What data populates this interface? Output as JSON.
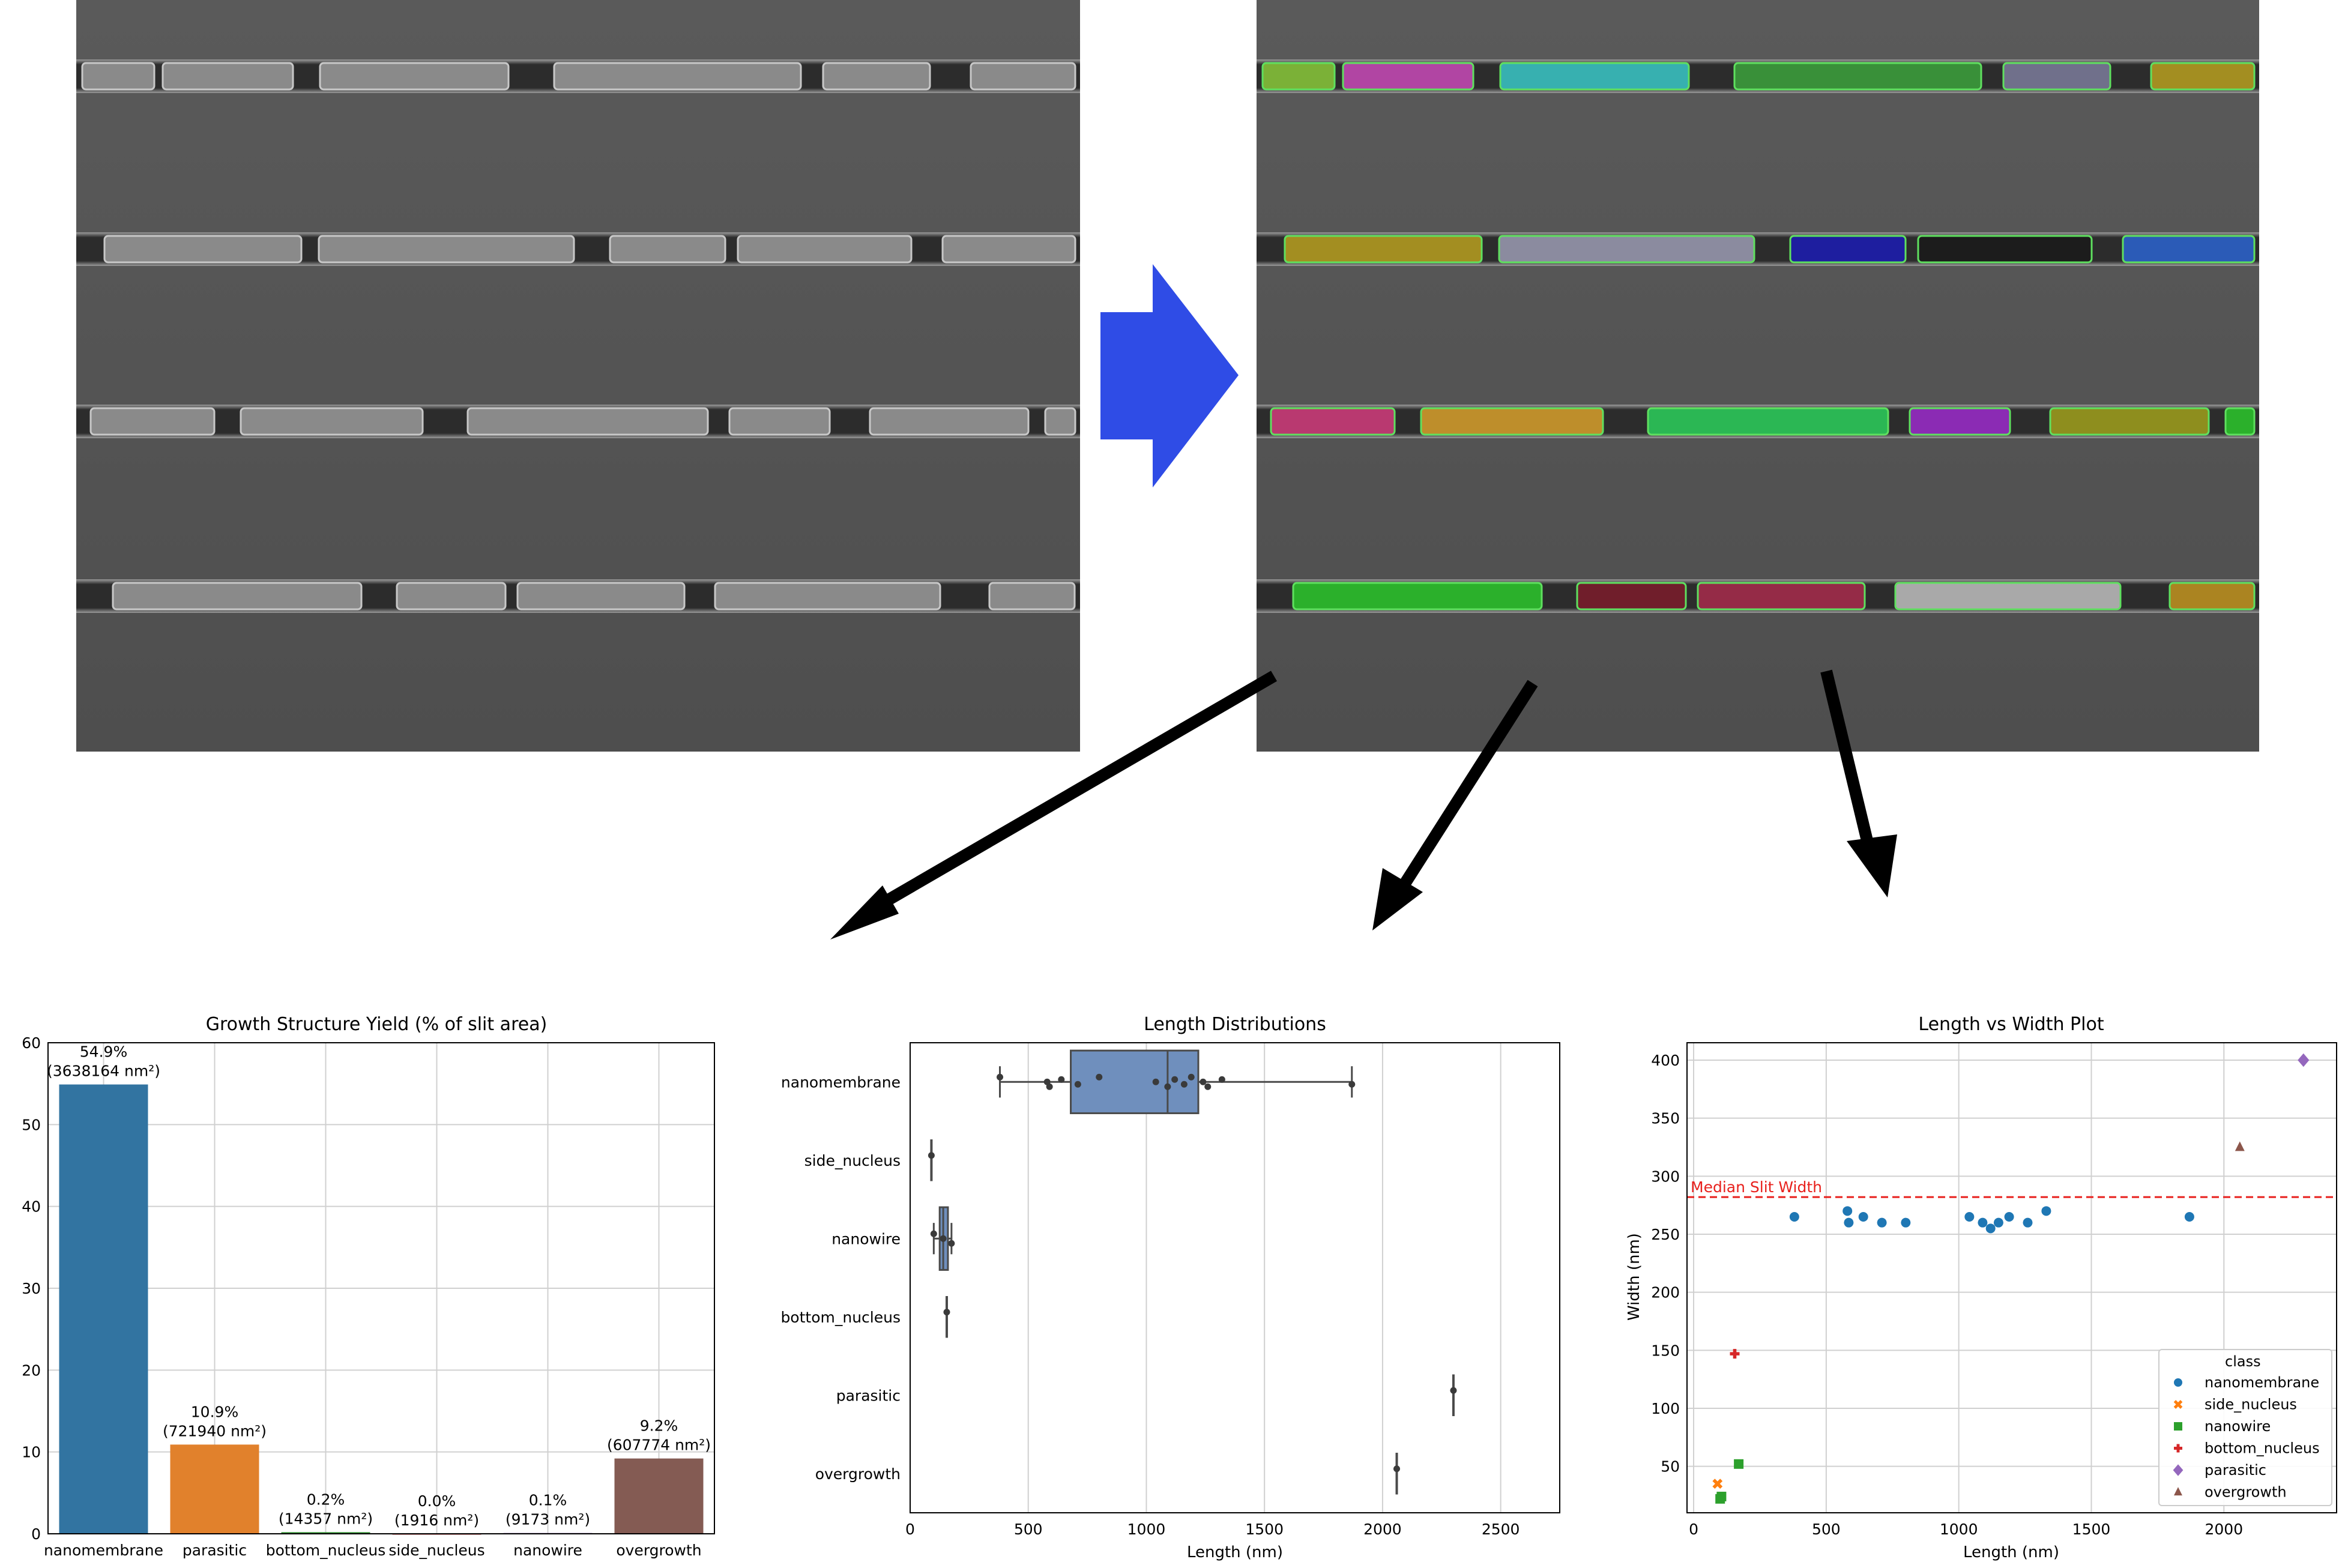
{
  "chart_data": [
    {
      "type": "bar",
      "title": "Growth Structure Yield (% of slit area)",
      "xlabel": "",
      "ylabel": "",
      "ylim": [
        0,
        60
      ],
      "yticks": [
        0,
        10,
        20,
        30,
        40,
        50,
        60
      ],
      "grid": true,
      "categories": [
        "nanomembrane",
        "parasitic",
        "bottom_nucleus",
        "side_nucleus",
        "nanowire",
        "overgrowth"
      ],
      "values": [
        54.9,
        10.9,
        0.2,
        0.0,
        0.1,
        9.2
      ],
      "pct_labels": [
        "54.9%",
        "10.9%",
        "0.2%",
        "0.0%",
        "0.1%",
        "9.2%"
      ],
      "area_labels": [
        "(3638164 nm²)",
        "(721940 nm²)",
        "(14357 nm²)",
        "(1916 nm²)",
        "(9173 nm²)",
        "(607774 nm²)"
      ],
      "colors": [
        "#3274a1",
        "#e1812c",
        "#3a923a",
        "#c03d3e",
        "#9372b2",
        "#845b53"
      ]
    },
    {
      "type": "box",
      "title": "Length Distributions",
      "xlabel": "Length (nm)",
      "ylabel": "",
      "xlim": [
        0,
        2750
      ],
      "xticks": [
        0,
        500,
        1000,
        1500,
        2000,
        2500
      ],
      "grid": true,
      "categories": [
        "nanomembrane",
        "side_nucleus",
        "nanowire",
        "bottom_nucleus",
        "parasitic",
        "overgrowth"
      ],
      "boxes": [
        {
          "category": "nanomembrane",
          "whisker_low": 380,
          "q1": 680,
          "median": 1090,
          "q3": 1220,
          "whisker_high": 1870,
          "points": [
            380,
            580,
            590,
            640,
            710,
            800,
            1040,
            1090,
            1120,
            1160,
            1190,
            1240,
            1260,
            1320,
            1870
          ]
        },
        {
          "category": "side_nucleus",
          "whisker_low": 90,
          "q1": 90,
          "median": 90,
          "q3": 90,
          "whisker_high": 90,
          "points": [
            90
          ]
        },
        {
          "category": "nanowire",
          "whisker_low": 100,
          "q1": 125,
          "median": 140,
          "q3": 160,
          "whisker_high": 175,
          "points": [
            100,
            140,
            175
          ]
        },
        {
          "category": "bottom_nucleus",
          "whisker_low": 155,
          "q1": 155,
          "median": 155,
          "q3": 155,
          "whisker_high": 155,
          "points": [
            155
          ]
        },
        {
          "category": "parasitic",
          "whisker_low": 2300,
          "q1": 2300,
          "median": 2300,
          "q3": 2300,
          "whisker_high": 2300,
          "points": [
            2300
          ]
        },
        {
          "category": "overgrowth",
          "whisker_low": 2060,
          "q1": 2060,
          "median": 2060,
          "q3": 2060,
          "whisker_high": 2060,
          "points": [
            2060
          ]
        }
      ],
      "box_color": "#6f8fbd"
    },
    {
      "type": "scatter",
      "title": "Length vs Width Plot",
      "xlabel": "Length (nm)",
      "ylabel": "Width (nm)",
      "xlim": [
        -25,
        2425
      ],
      "ylim": [
        10,
        415
      ],
      "xticks": [
        0,
        500,
        1000,
        1500,
        2000
      ],
      "yticks": [
        50,
        100,
        150,
        200,
        250,
        300,
        350,
        400
      ],
      "grid": true,
      "hline": {
        "y": 282,
        "label": "Median Slit Width",
        "color": "#e8201c"
      },
      "legend": {
        "title": "class",
        "position": "lower-right"
      },
      "series": [
        {
          "name": "nanomembrane",
          "color": "#1f77b4",
          "marker": "circle",
          "points": [
            [
              380,
              265
            ],
            [
              580,
              270
            ],
            [
              585,
              260
            ],
            [
              640,
              265
            ],
            [
              710,
              260
            ],
            [
              800,
              260
            ],
            [
              1040,
              265
            ],
            [
              1090,
              260
            ],
            [
              1120,
              255
            ],
            [
              1150,
              260
            ],
            [
              1190,
              265
            ],
            [
              1260,
              260
            ],
            [
              1330,
              270
            ],
            [
              1870,
              265
            ]
          ]
        },
        {
          "name": "side_nucleus",
          "color": "#ff7f0e",
          "marker": "x",
          "points": [
            [
              90,
              35
            ]
          ]
        },
        {
          "name": "nanowire",
          "color": "#2ca02c",
          "marker": "square",
          "points": [
            [
              100,
              22
            ],
            [
              105,
              24
            ],
            [
              170,
              52
            ]
          ]
        },
        {
          "name": "bottom_nucleus",
          "color": "#d62728",
          "marker": "plus",
          "points": [
            [
              155,
              147
            ]
          ]
        },
        {
          "name": "parasitic",
          "color": "#9467bd",
          "marker": "diamond",
          "points": [
            [
              2300,
              400
            ]
          ]
        },
        {
          "name": "overgrowth",
          "color": "#8c564b",
          "marker": "triangle",
          "points": [
            [
              2060,
              325
            ]
          ]
        }
      ]
    }
  ],
  "segmentation_colors": [
    "#8ac93a",
    "#c94ab8",
    "#3ac8c8",
    "#3ca23c",
    "#7c7c9c",
    "#b8a020",
    "#9c9cb4",
    "#1c1cb4",
    "#1a1a1a",
    "#2c64d0",
    "#d23c7c",
    "#d8a02c",
    "#2cd05c",
    "#9c2ccc",
    "#a0a01c",
    "#2cc82c",
    "#7c1c2c",
    "#a82c4c",
    "#c0c0c0",
    "#c29420",
    "#3c9c8c",
    "#3cc8d8"
  ],
  "arrow_color": "#2f4ce6"
}
